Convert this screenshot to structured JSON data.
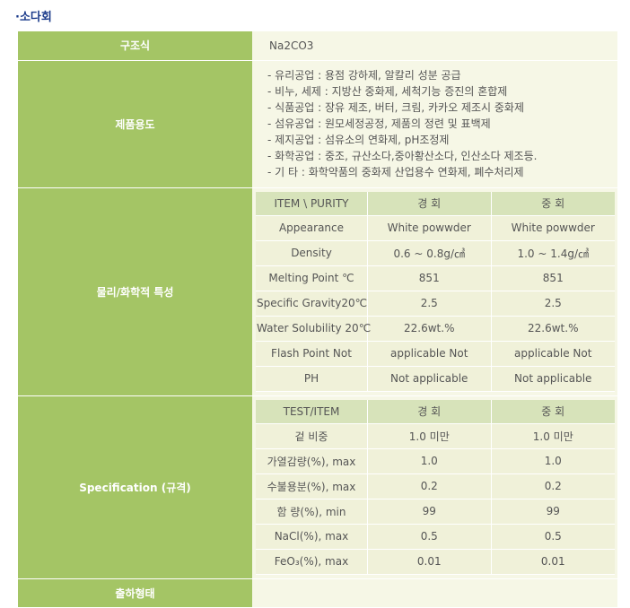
{
  "page_title": "·소다회",
  "rows": {
    "structure": {
      "label": "구조식",
      "value": "Na2CO3"
    },
    "usage": {
      "label": "제품용도",
      "items": [
        "유리공업 : 용점 강하제, 알칼리 성분 공급",
        "비누, 세제 : 지방산 중화제, 세척기능 증진의 혼합제",
        "식품공업 : 장유 제조, 버터, 크림, 카카오 제조시 중화제",
        "섬유공업 : 원모세정공정, 제품의 정련 및 표백제",
        "제지공업 : 섬유소의 연화제, pH조정제",
        "화학공업 : 중조, 규산소다,중아황산소다, 인산소다 제조등.",
        "기 타 : 화학약품의 중화제 산업용수 연화제, 폐수처리제"
      ]
    },
    "properties": {
      "label": "물리/화학적 특성",
      "headers": [
        "ITEM \\ PURITY",
        "경 회",
        "중 회"
      ],
      "rows": [
        [
          "Appearance",
          "White powwder",
          "White powwder"
        ],
        [
          "Density",
          "0.6 ~ 0.8g/㎤",
          "1.0 ~ 1.4g/㎤"
        ],
        [
          "Melting Point ℃",
          "851",
          "851"
        ],
        [
          "Specific Gravity20℃",
          "2.5",
          "2.5"
        ],
        [
          "Water Solubility 20℃",
          "22.6wt.%",
          "22.6wt.%"
        ],
        [
          "Flash Point Not",
          "applicable Not",
          "applicable Not"
        ],
        [
          "PH",
          "Not applicable",
          "Not applicable"
        ]
      ]
    },
    "specification": {
      "label": "Specification (규격)",
      "headers": [
        "TEST/ITEM",
        "경 회",
        "중 회"
      ],
      "rows": [
        [
          "겉 비중",
          "1.0 미만",
          "1.0 미만"
        ],
        [
          "가열감량(%), max",
          "1.0",
          "1.0"
        ],
        [
          "수불용분(%), max",
          "0.2",
          "0.2"
        ],
        [
          "함 량(%), min",
          "99",
          "99"
        ],
        [
          "NaCl(%), max",
          "0.5",
          "0.5"
        ],
        [
          "FeO₃(%), max",
          "0.01",
          "0.01"
        ]
      ]
    },
    "shipping": {
      "label": "출하형태",
      "value": ""
    }
  }
}
